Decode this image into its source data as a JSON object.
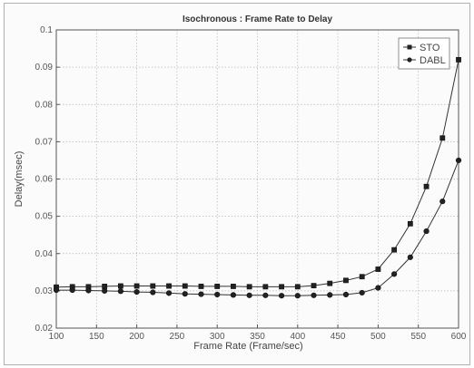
{
  "chart_data": {
    "type": "line",
    "title": "Isochronous : Frame Rate to Delay",
    "xlabel": "Frame Rate (Frame/sec)",
    "ylabel": "Delay(msec)",
    "xlim": [
      100,
      600
    ],
    "ylim": [
      0.02,
      0.1
    ],
    "xticks": [
      "100",
      "150",
      "200",
      "250",
      "300",
      "350",
      "400",
      "450",
      "500",
      "550",
      "600"
    ],
    "yticks": [
      "0.02",
      "0.03",
      "0.04",
      "0.05",
      "0.06",
      "0.07",
      "0.08",
      "0.09",
      "0.1"
    ],
    "grid": true,
    "legend_position": "top-right",
    "series": [
      {
        "name": "STO",
        "marker": "square",
        "color": "#333333",
        "x": [
          100,
          120,
          140,
          160,
          180,
          200,
          220,
          240,
          260,
          280,
          300,
          320,
          340,
          360,
          380,
          400,
          420,
          440,
          460,
          480,
          500,
          520,
          540,
          560,
          580,
          600
        ],
        "y": [
          0.031,
          0.0311,
          0.0311,
          0.0312,
          0.0313,
          0.0313,
          0.0313,
          0.0313,
          0.0313,
          0.0312,
          0.0312,
          0.0312,
          0.0311,
          0.0311,
          0.0311,
          0.0311,
          0.0314,
          0.032,
          0.0328,
          0.0338,
          0.0358,
          0.041,
          0.048,
          0.058,
          0.071,
          0.092
        ]
      },
      {
        "name": "DABL",
        "marker": "circle",
        "color": "#333333",
        "x": [
          100,
          120,
          140,
          160,
          180,
          200,
          220,
          240,
          260,
          280,
          300,
          320,
          340,
          360,
          380,
          400,
          420,
          440,
          460,
          480,
          500,
          520,
          540,
          560,
          580,
          600
        ],
        "y": [
          0.0302,
          0.0302,
          0.0301,
          0.03,
          0.0299,
          0.0297,
          0.0296,
          0.0294,
          0.0292,
          0.0291,
          0.029,
          0.0289,
          0.0288,
          0.0288,
          0.0287,
          0.0287,
          0.0288,
          0.0289,
          0.029,
          0.0295,
          0.0308,
          0.0345,
          0.039,
          0.046,
          0.054,
          0.065
        ]
      }
    ]
  }
}
